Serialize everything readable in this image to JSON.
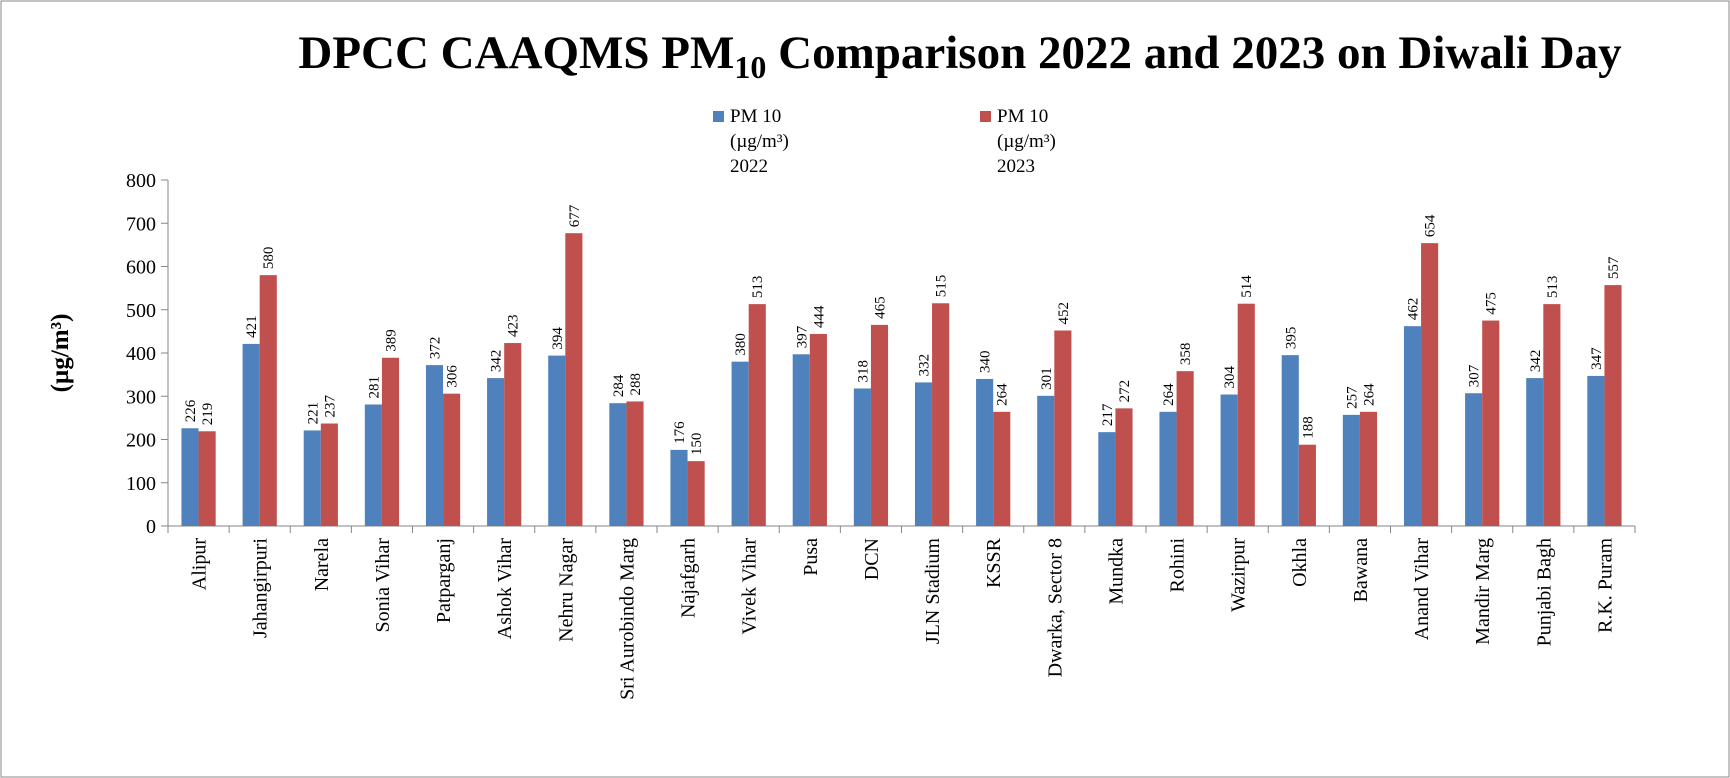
{
  "chart_data": {
    "type": "bar",
    "title": [
      "DPCC CAAQMS PM",
      "10",
      " Comparison 2022 and 2023 on Diwali Day"
    ],
    "y_label": "(µg/m³)",
    "categories": [
      "Alipur",
      "Jahangirpuri",
      "Narela",
      "Sonia Vihar",
      "Patparganj",
      "Ashok Vihar",
      "Nehru Nagar",
      "Sri Aurobindo Marg",
      "Najafgarh",
      "Vivek Vihar",
      "Pusa",
      "DCN",
      "JLN Stadium",
      "KSSR",
      "Dwarka, Sector 8",
      "Mundka",
      "Rohini",
      "Wazirpur",
      "Okhla",
      "Bawana",
      "Anand Vihar",
      "Mandir Marg",
      "Punjabi Bagh",
      "R.K. Puram"
    ],
    "series": [
      {
        "name": "PM 10 (µg/m³) 2022",
        "color": "#4f81bd",
        "values": [
          226,
          421,
          221,
          281,
          372,
          342,
          394,
          284,
          176,
          380,
          397,
          318,
          332,
          340,
          301,
          217,
          264,
          304,
          395,
          257,
          462,
          307,
          342,
          347
        ]
      },
      {
        "name": "PM 10 (µg/m³) 2023",
        "color": "#c0504d",
        "values": [
          219,
          580,
          237,
          389,
          306,
          423,
          677,
          288,
          150,
          513,
          444,
          465,
          515,
          264,
          452,
          272,
          358,
          514,
          188,
          264,
          654,
          475,
          513,
          557
        ]
      }
    ],
    "ylim": [
      0,
      800
    ],
    "yticks": [
      0,
      100,
      200,
      300,
      400,
      500,
      600,
      700,
      800
    ],
    "legend": "top"
  }
}
